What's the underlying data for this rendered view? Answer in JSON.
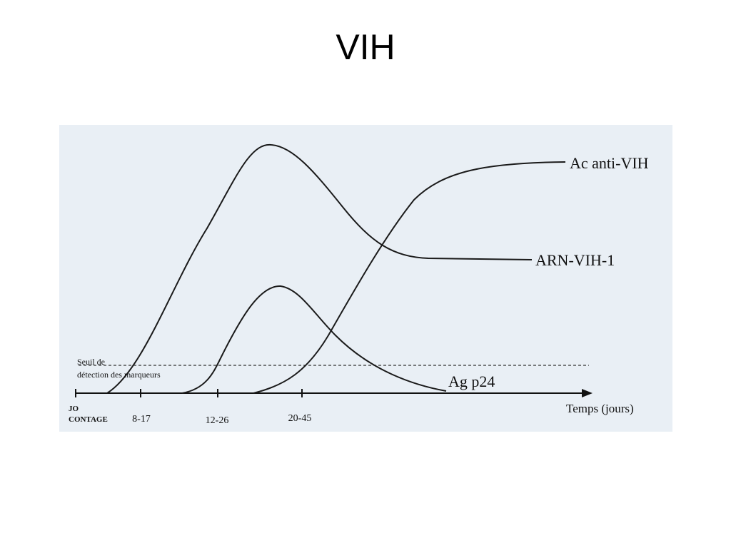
{
  "title": "VIH",
  "diagram": {
    "curves": [
      {
        "label": "Ac anti-VIH"
      },
      {
        "label": "ARN-VIH-1"
      },
      {
        "label": "Ag p24"
      }
    ],
    "threshold": {
      "label": [
        "Seuil de",
        "détection des marqueurs"
      ]
    },
    "axis": {
      "origin": [
        "JO",
        "CONTAGE"
      ],
      "ticks": [
        "8-17",
        "12-26",
        "20-45"
      ],
      "label": "Temps (jours)"
    }
  }
}
